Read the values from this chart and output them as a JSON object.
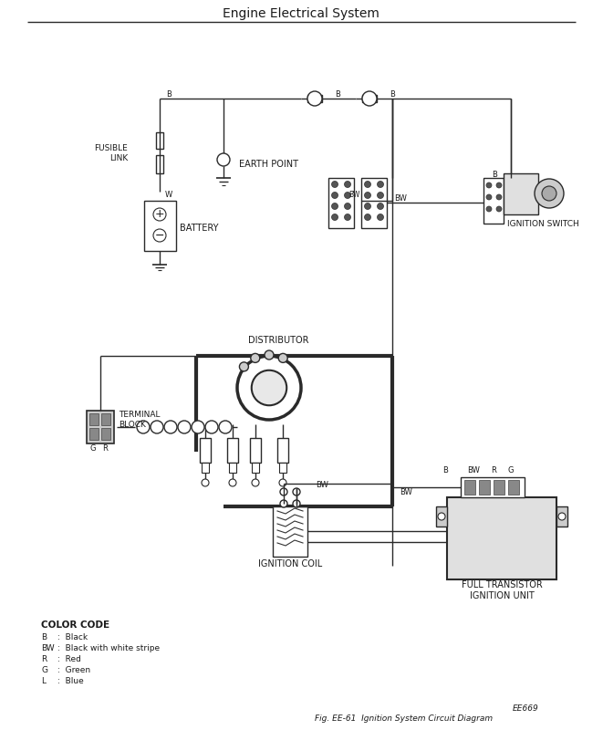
{
  "title": "Engine Electrical System",
  "bg_color": "#ffffff",
  "line_color": "#2a2a2a",
  "fig_caption": "Fig. EE-61  Ignition System Circuit Diagram",
  "fig_number": "EE669",
  "labels": {
    "fusible_link": "FUSIBLE\nLINK",
    "earth_point": "EARTH POINT",
    "battery": "BATTERY",
    "distributor": "DISTRIBUTOR",
    "terminal_block": "TERMINAL\nBLOCK",
    "ignition_coil": "IGNITION COIL",
    "ignition_switch": "IGNITION SWITCH",
    "full_transistor": "FULL TRANSISTOR\nIGNITION UNIT"
  },
  "color_items": [
    [
      "B",
      "Black"
    ],
    [
      "BW",
      "Black with white stripe"
    ],
    [
      "R",
      "Red"
    ],
    [
      "G",
      "Green"
    ],
    [
      "L",
      "Blue"
    ]
  ]
}
